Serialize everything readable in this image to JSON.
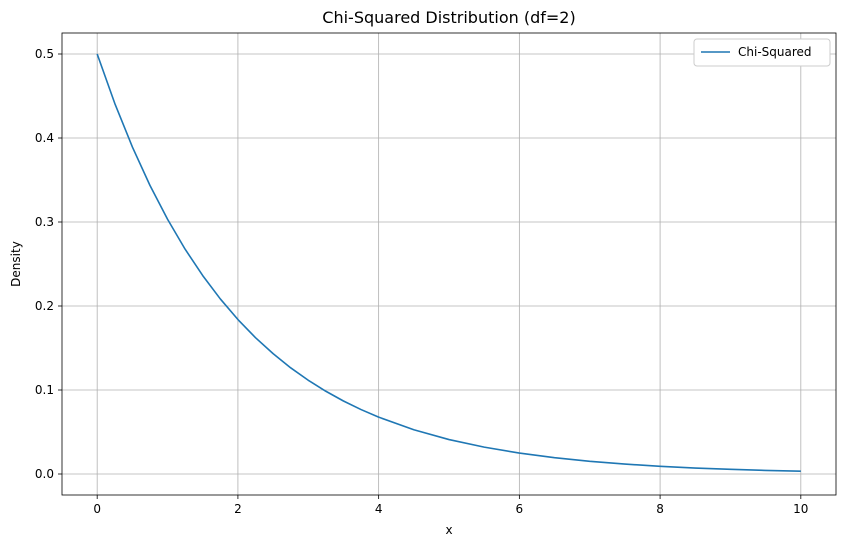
{
  "chart_data": {
    "type": "line",
    "title": "Chi-Squared Distribution (df=2)",
    "xlabel": "x",
    "ylabel": "Density",
    "xlim": [
      -0.5,
      10.5
    ],
    "ylim": [
      -0.025,
      0.525
    ],
    "xticks": [
      0,
      2,
      4,
      6,
      8,
      10
    ],
    "xtick_labels": [
      "0",
      "2",
      "4",
      "6",
      "8",
      "10"
    ],
    "yticks": [
      0.0,
      0.1,
      0.2,
      0.3,
      0.4,
      0.5
    ],
    "ytick_labels": [
      "0.0",
      "0.1",
      "0.2",
      "0.3",
      "0.4",
      "0.5"
    ],
    "grid": true,
    "legend_position": "top-right",
    "series": [
      {
        "name": "Chi-Squared",
        "color": "#1f77b4",
        "x": [
          0,
          0.25,
          0.5,
          0.75,
          1,
          1.25,
          1.5,
          1.75,
          2,
          2.25,
          2.5,
          2.75,
          3,
          3.25,
          3.5,
          3.75,
          4,
          4.5,
          5,
          5.5,
          6,
          6.5,
          7,
          7.5,
          8,
          8.5,
          9,
          9.5,
          10
        ],
        "y": [
          0.5,
          0.4412,
          0.3894,
          0.3436,
          0.3033,
          0.2676,
          0.2362,
          0.2084,
          0.1839,
          0.1623,
          0.1433,
          0.1264,
          0.1116,
          0.0985,
          0.0869,
          0.0767,
          0.0677,
          0.0527,
          0.041,
          0.032,
          0.0249,
          0.0194,
          0.0151,
          0.0118,
          0.0092,
          0.0071,
          0.0056,
          0.0043,
          0.0034
        ]
      }
    ]
  }
}
